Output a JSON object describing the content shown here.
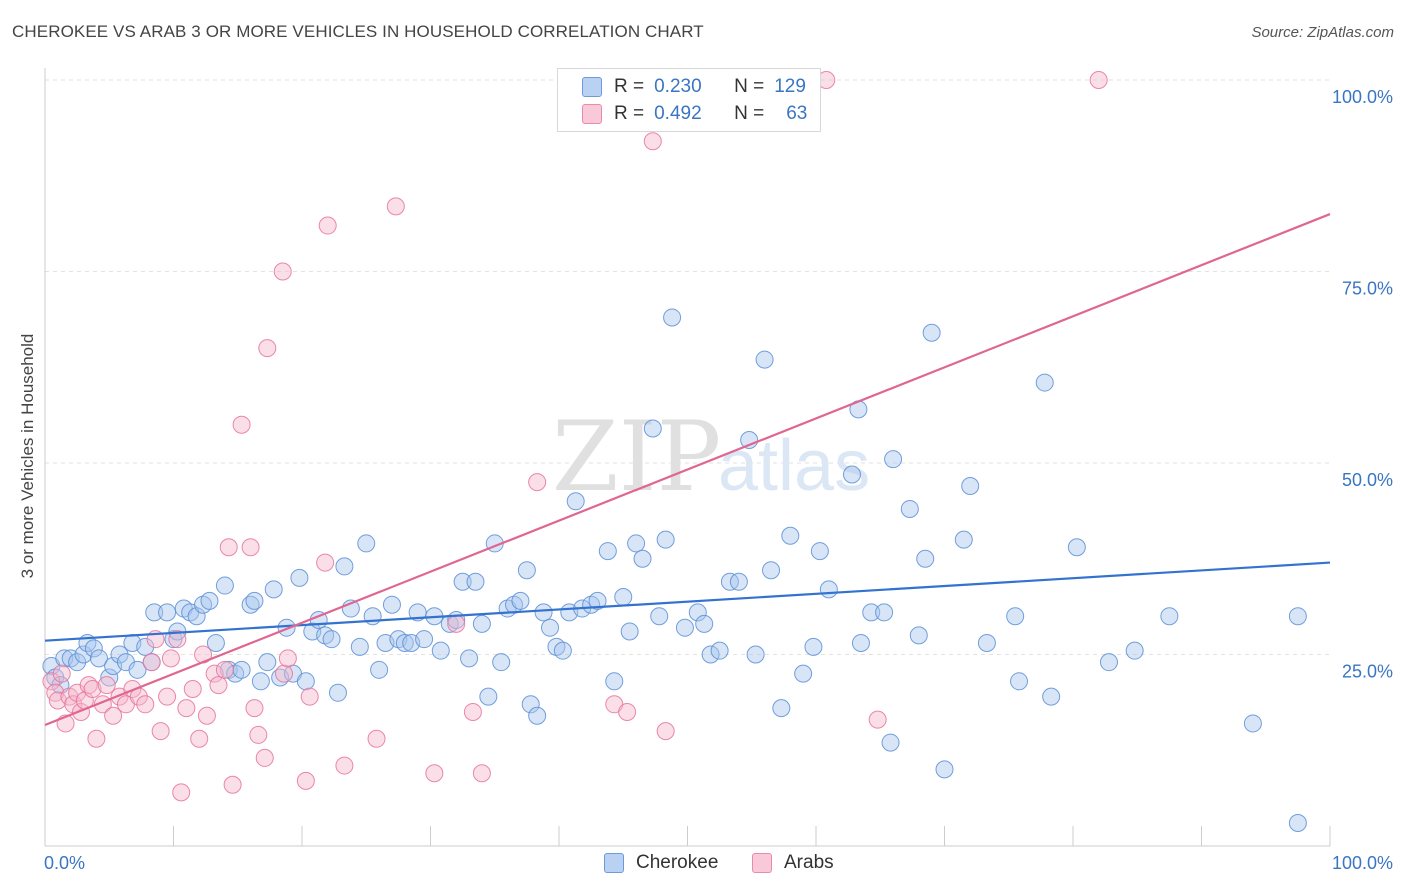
{
  "title": "CHEROKEE VS ARAB 3 OR MORE VEHICLES IN HOUSEHOLD CORRELATION CHART",
  "source": "Source: ZipAtlas.com",
  "watermark": {
    "zip": "ZIP",
    "atlas": "atlas"
  },
  "legend": {
    "r_label": "R =",
    "n_label": "N =",
    "items": [
      {
        "name": "Cherokee",
        "r": "0.230",
        "n": "129",
        "color": "#5b8fd6",
        "fill": "#a9c6ee"
      },
      {
        "name": "Arabs",
        "r": "0.492",
        "n": "63",
        "color": "#e8739b",
        "fill": "#f5b7cc"
      }
    ]
  },
  "chart_data": {
    "type": "scatter",
    "title": "CHEROKEE VS ARAB 3 OR MORE VEHICLES IN HOUSEHOLD CORRELATION CHART",
    "xlabel": "",
    "ylabel": "3 or more Vehicles in Household",
    "xlim": [
      0,
      100
    ],
    "ylim": [
      0,
      100
    ],
    "x_tick_labels": [
      "0.0%",
      "100.0%"
    ],
    "y_ticks": [
      25,
      50,
      75,
      100
    ],
    "y_tick_labels": [
      "25.0%",
      "50.0%",
      "75.0%",
      "100.0%"
    ],
    "grid": true,
    "series": [
      {
        "name": "Cherokee",
        "color": "#3373cf",
        "point_fill": "#a9c6ee",
        "point_stroke": "#5b8fd6",
        "trend": {
          "x": [
            0,
            100
          ],
          "y": [
            26.8,
            37.0
          ]
        },
        "points": [
          [
            0.5,
            23.5
          ],
          [
            0.8,
            22.0
          ],
          [
            1.2,
            21.0
          ],
          [
            1.5,
            24.5
          ],
          [
            2.0,
            24.5
          ],
          [
            2.5,
            24.0
          ],
          [
            3.0,
            25.0
          ],
          [
            3.3,
            26.5
          ],
          [
            3.8,
            25.8
          ],
          [
            4.2,
            24.5
          ],
          [
            5.0,
            22.0
          ],
          [
            5.3,
            23.5
          ],
          [
            5.8,
            25.0
          ],
          [
            6.3,
            24.0
          ],
          [
            6.8,
            26.5
          ],
          [
            7.2,
            23.0
          ],
          [
            7.8,
            26.0
          ],
          [
            8.3,
            24.0
          ],
          [
            8.5,
            30.5
          ],
          [
            9.5,
            30.5
          ],
          [
            10.0,
            27.0
          ],
          [
            10.3,
            28.0
          ],
          [
            10.8,
            31.0
          ],
          [
            11.3,
            30.5
          ],
          [
            11.8,
            30.0
          ],
          [
            12.3,
            31.5
          ],
          [
            12.8,
            32.0
          ],
          [
            13.3,
            26.5
          ],
          [
            14.0,
            34.0
          ],
          [
            14.3,
            23.0
          ],
          [
            14.8,
            22.5
          ],
          [
            15.3,
            23.0
          ],
          [
            16.0,
            31.5
          ],
          [
            16.3,
            32.0
          ],
          [
            16.8,
            21.5
          ],
          [
            17.3,
            24.0
          ],
          [
            17.8,
            33.5
          ],
          [
            18.3,
            22.0
          ],
          [
            18.8,
            28.5
          ],
          [
            19.3,
            22.5
          ],
          [
            19.8,
            35.0
          ],
          [
            20.3,
            21.5
          ],
          [
            20.8,
            28.0
          ],
          [
            21.3,
            29.5
          ],
          [
            21.8,
            27.5
          ],
          [
            22.3,
            27.0
          ],
          [
            22.8,
            20.0
          ],
          [
            23.3,
            36.5
          ],
          [
            23.8,
            31.0
          ],
          [
            24.5,
            26.0
          ],
          [
            25.0,
            39.5
          ],
          [
            25.5,
            30.0
          ],
          [
            26.0,
            23.0
          ],
          [
            26.5,
            26.5
          ],
          [
            27.0,
            31.5
          ],
          [
            27.5,
            27.0
          ],
          [
            28.0,
            26.5
          ],
          [
            28.5,
            26.5
          ],
          [
            29.0,
            30.5
          ],
          [
            29.5,
            27.0
          ],
          [
            30.3,
            30.0
          ],
          [
            30.8,
            25.5
          ],
          [
            31.5,
            29.0
          ],
          [
            32.0,
            29.5
          ],
          [
            32.5,
            34.5
          ],
          [
            33.0,
            24.5
          ],
          [
            33.5,
            34.5
          ],
          [
            34.0,
            29.0
          ],
          [
            34.5,
            19.5
          ],
          [
            35.0,
            39.5
          ],
          [
            35.5,
            24.0
          ],
          [
            36.0,
            31.0
          ],
          [
            36.5,
            31.5
          ],
          [
            37.0,
            32.0
          ],
          [
            37.5,
            36.0
          ],
          [
            37.8,
            18.5
          ],
          [
            38.3,
            17.0
          ],
          [
            38.8,
            30.5
          ],
          [
            39.3,
            28.5
          ],
          [
            39.8,
            26.0
          ],
          [
            40.3,
            25.5
          ],
          [
            40.8,
            30.5
          ],
          [
            41.3,
            45.0
          ],
          [
            41.8,
            31.0
          ],
          [
            42.5,
            31.5
          ],
          [
            43.0,
            32.0
          ],
          [
            43.8,
            38.5
          ],
          [
            44.3,
            21.5
          ],
          [
            45.0,
            32.5
          ],
          [
            45.5,
            28.0
          ],
          [
            46.0,
            39.5
          ],
          [
            46.5,
            37.5
          ],
          [
            47.3,
            54.5
          ],
          [
            47.8,
            30.0
          ],
          [
            48.3,
            40.0
          ],
          [
            48.8,
            69.0
          ],
          [
            49.8,
            28.5
          ],
          [
            50.8,
            30.5
          ],
          [
            51.3,
            29.0
          ],
          [
            51.8,
            25.0
          ],
          [
            52.5,
            25.5
          ],
          [
            53.3,
            34.5
          ],
          [
            54.0,
            34.5
          ],
          [
            54.8,
            53.0
          ],
          [
            55.3,
            25.0
          ],
          [
            56.0,
            63.5
          ],
          [
            56.5,
            36.0
          ],
          [
            57.3,
            18.0
          ],
          [
            58.0,
            40.5
          ],
          [
            59.0,
            22.5
          ],
          [
            59.8,
            26.0
          ],
          [
            60.3,
            38.5
          ],
          [
            61.0,
            33.5
          ],
          [
            62.8,
            48.5
          ],
          [
            63.3,
            57.0
          ],
          [
            63.5,
            26.5
          ],
          [
            64.3,
            30.5
          ],
          [
            65.3,
            30.5
          ],
          [
            65.8,
            13.5
          ],
          [
            66.0,
            50.5
          ],
          [
            67.3,
            44.0
          ],
          [
            68.0,
            27.5
          ],
          [
            68.5,
            37.5
          ],
          [
            69.0,
            67.0
          ],
          [
            70.0,
            10.0
          ],
          [
            71.5,
            40.0
          ],
          [
            72.0,
            47.0
          ],
          [
            73.3,
            26.5
          ],
          [
            75.5,
            30.0
          ],
          [
            75.8,
            21.5
          ],
          [
            77.8,
            60.5
          ],
          [
            78.3,
            19.5
          ],
          [
            80.3,
            39.0
          ],
          [
            82.8,
            24.0
          ],
          [
            84.8,
            25.5
          ],
          [
            87.5,
            30.0
          ],
          [
            94.0,
            16.0
          ],
          [
            97.5,
            30.0
          ],
          [
            97.5,
            3.0
          ]
        ]
      },
      {
        "name": "Arabs",
        "color": "#e06692",
        "point_fill": "#f5b7cc",
        "point_stroke": "#e8739b",
        "trend": {
          "x": [
            0,
            100
          ],
          "y": [
            15.8,
            82.5
          ]
        },
        "points": [
          [
            0.5,
            21.5
          ],
          [
            0.8,
            20.0
          ],
          [
            1.0,
            19.0
          ],
          [
            1.3,
            22.5
          ],
          [
            1.6,
            16.0
          ],
          [
            1.9,
            19.5
          ],
          [
            2.2,
            18.5
          ],
          [
            2.5,
            20.0
          ],
          [
            2.8,
            17.5
          ],
          [
            3.1,
            19.0
          ],
          [
            3.4,
            21.0
          ],
          [
            3.7,
            20.5
          ],
          [
            4.0,
            14.0
          ],
          [
            4.5,
            18.5
          ],
          [
            4.8,
            21.0
          ],
          [
            5.3,
            17.0
          ],
          [
            5.8,
            19.5
          ],
          [
            6.3,
            18.5
          ],
          [
            6.8,
            20.5
          ],
          [
            7.3,
            19.5
          ],
          [
            7.8,
            18.5
          ],
          [
            8.3,
            24.0
          ],
          [
            8.6,
            27.0
          ],
          [
            9.0,
            15.0
          ],
          [
            9.5,
            19.5
          ],
          [
            9.8,
            24.5
          ],
          [
            10.3,
            27.0
          ],
          [
            10.6,
            7.0
          ],
          [
            11.0,
            18.0
          ],
          [
            11.5,
            20.5
          ],
          [
            12.0,
            14.0
          ],
          [
            12.3,
            25.0
          ],
          [
            12.6,
            17.0
          ],
          [
            13.2,
            22.5
          ],
          [
            13.5,
            21.0
          ],
          [
            14.0,
            23.0
          ],
          [
            14.3,
            39.0
          ],
          [
            14.6,
            8.0
          ],
          [
            15.3,
            55.0
          ],
          [
            16.0,
            39.0
          ],
          [
            16.3,
            18.0
          ],
          [
            16.6,
            14.5
          ],
          [
            17.3,
            65.0
          ],
          [
            17.1,
            11.5
          ],
          [
            18.5,
            75.0
          ],
          [
            18.6,
            22.5
          ],
          [
            18.9,
            24.5
          ],
          [
            20.3,
            8.5
          ],
          [
            20.6,
            19.5
          ],
          [
            21.8,
            37.0
          ],
          [
            22.0,
            81.0
          ],
          [
            23.3,
            10.5
          ],
          [
            25.8,
            14.0
          ],
          [
            27.3,
            83.5
          ],
          [
            30.3,
            9.5
          ],
          [
            32.0,
            29.0
          ],
          [
            33.3,
            17.5
          ],
          [
            34.0,
            9.5
          ],
          [
            38.3,
            47.5
          ],
          [
            44.3,
            18.5
          ],
          [
            45.3,
            17.5
          ],
          [
            47.3,
            92.0
          ],
          [
            48.3,
            15.0
          ],
          [
            60.8,
            100.0
          ],
          [
            64.8,
            16.5
          ],
          [
            82.0,
            100.0
          ]
        ]
      }
    ]
  }
}
